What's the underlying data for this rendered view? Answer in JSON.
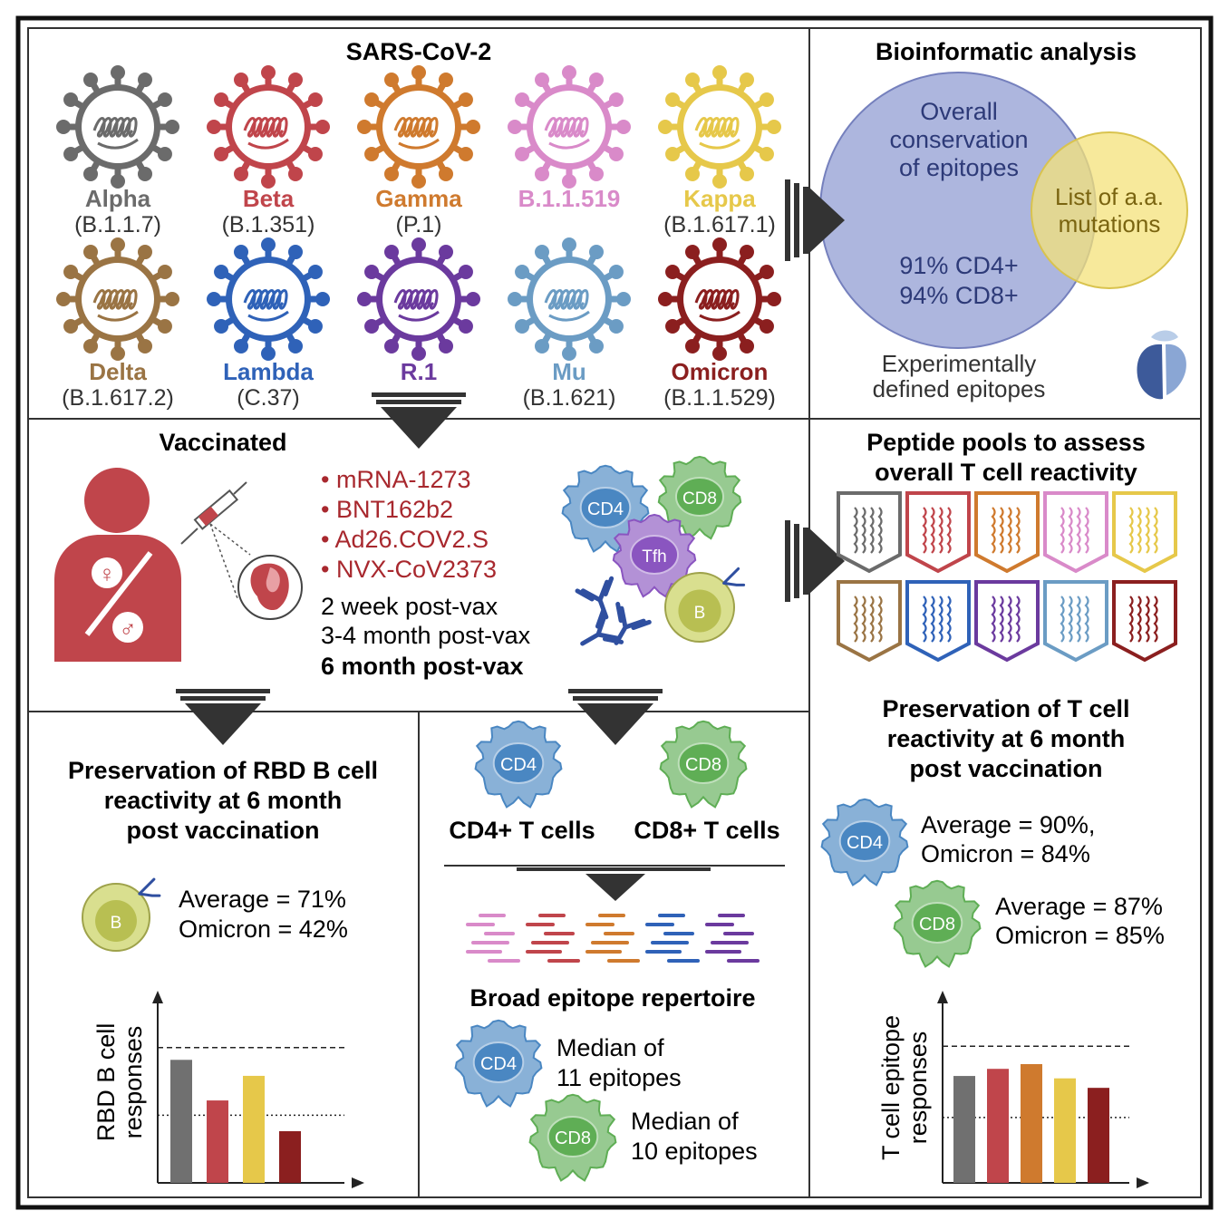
{
  "sars": {
    "title": "SARS-CoV-2",
    "variants": [
      {
        "name": "Alpha",
        "lineage": "(B.1.1.7)",
        "color": "#6b6b6b"
      },
      {
        "name": "Beta",
        "lineage": "(B.1.351)",
        "color": "#c0454b"
      },
      {
        "name": "Gamma",
        "lineage": "(P.1)",
        "color": "#cf7a2e"
      },
      {
        "name": "B.1.1.519",
        "lineage": "",
        "color": "#d98ac9"
      },
      {
        "name": "Kappa",
        "lineage": "(B.1.617.1)",
        "color": "#e6c84a"
      },
      {
        "name": "Delta",
        "lineage": "(B.1.617.2)",
        "color": "#9a7444"
      },
      {
        "name": "Lambda",
        "lineage": "(C.37)",
        "color": "#2f62b8"
      },
      {
        "name": "R.1",
        "lineage": "",
        "color": "#6b3a9e"
      },
      {
        "name": "Mu",
        "lineage": "(B.1.621)",
        "color": "#6b9cc4"
      },
      {
        "name": "Omicron",
        "lineage": "(B.1.1.529)",
        "color": "#8b1f1f"
      }
    ]
  },
  "bioinformatic": {
    "title": "Bioinformatic analysis",
    "big_circle_lines": [
      "Overall",
      "conservation",
      "of epitopes"
    ],
    "small_circle_lines": [
      "List of a.a.",
      "mutations"
    ],
    "cd4_pct": "91% CD4+",
    "cd8_pct": "94% CD8+",
    "caption_lines": [
      "Experimentally",
      "defined epitopes"
    ]
  },
  "vaccinated": {
    "title": "Vaccinated",
    "vaccines": [
      "• mRNA-1273",
      "• BNT162b2",
      "• Ad26.COV2.S",
      "• NVX-CoV2373"
    ],
    "timepoints": [
      "2 week post-vax",
      "3-4 month post-vax"
    ],
    "timepoint_bold": "6 month post-vax",
    "cells": {
      "cd4": "CD4",
      "cd8": "CD8",
      "tfh": "Tfh",
      "b": "B"
    },
    "female_symbol": "♀",
    "male_symbol": "♂"
  },
  "peptide": {
    "title_lines": [
      "Peptide pools to assess",
      "overall T cell reactivity"
    ]
  },
  "bcell": {
    "title_lines": [
      "Preservation of RBD B cell",
      "reactivity at 6 month",
      "post vaccination"
    ],
    "b_label": "B",
    "average": "Average = 71%",
    "omicron": "Omicron = 42%",
    "ylabel_lines": [
      "RBD B cell",
      "responses"
    ]
  },
  "epitope": {
    "cd4_label": "CD4",
    "cd8_label": "CD8",
    "cd4_caption": "CD4+ T cells",
    "cd8_caption": "CD8+ T cells",
    "repertoire": "Broad epitope repertoire",
    "cd4_median": [
      "Median of",
      "11 epitopes"
    ],
    "cd8_median": [
      "Median of",
      "10 epitopes"
    ]
  },
  "tcell": {
    "title_lines": [
      "Preservation of T cell",
      "reactivity at 6 month",
      "post vaccination"
    ],
    "cd4_label": "CD4",
    "cd8_label": "CD8",
    "cd4_lines": [
      "Average = 90%,",
      "Omicron = 84%"
    ],
    "cd8_lines": [
      "Average = 87%",
      "Omicron = 85%"
    ],
    "ylabel_lines": [
      "T cell epitope",
      "responses"
    ]
  },
  "chart_data": [
    {
      "type": "bar",
      "title": "",
      "ylabel": "RBD B cell responses",
      "series": [
        {
          "values": [
            100,
            67,
            87,
            42
          ],
          "colors": [
            "#707070",
            "#c0454b",
            "#e6c84a",
            "#8b1f1f"
          ]
        }
      ],
      "categories": [
        "",
        "",
        "",
        ""
      ],
      "reference_lines": [
        {
          "style": "dashed",
          "value": 110
        },
        {
          "style": "dotted",
          "value": 55
        }
      ],
      "ylim": [
        0,
        140
      ]
    },
    {
      "type": "bar",
      "title": "",
      "ylabel": "T cell epitope responses",
      "series": [
        {
          "values": [
            90,
            96,
            100,
            88,
            80
          ],
          "colors": [
            "#707070",
            "#c0454b",
            "#cf7a2e",
            "#e6c84a",
            "#8b1f1f"
          ]
        }
      ],
      "categories": [
        "",
        "",
        "",
        "",
        ""
      ],
      "reference_lines": [
        {
          "style": "dashed",
          "value": 115
        },
        {
          "style": "dotted",
          "value": 55
        }
      ],
      "ylim": [
        0,
        145
      ]
    }
  ]
}
